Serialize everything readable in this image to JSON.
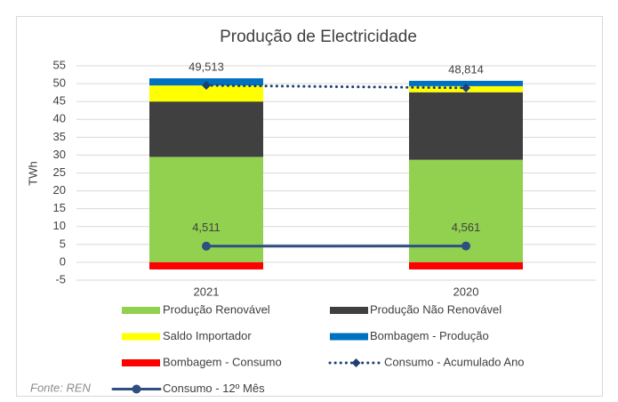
{
  "chart_data": {
    "type": "bar",
    "title": "Produção de Electricidade",
    "y_label": "TWh",
    "source": "Fonte: REN",
    "categories": [
      "2021",
      "2020"
    ],
    "ylim": [
      -5,
      55
    ],
    "yticks": [
      -5,
      0,
      5,
      10,
      15,
      20,
      25,
      30,
      35,
      40,
      45,
      50,
      55
    ],
    "grid": true,
    "stacked": true,
    "series": [
      {
        "name": "Produção Renovável",
        "color": "#92d050",
        "values": [
          29.5,
          28.7
        ]
      },
      {
        "name": "Produção Não Renovável",
        "color": "#404040",
        "values": [
          15.5,
          18.9
        ]
      },
      {
        "name": "Saldo Importador",
        "color": "#ffff00",
        "values": [
          4.5,
          1.7
        ]
      },
      {
        "name": "Bombagem - Produção",
        "color": "#0070c0",
        "values": [
          2,
          1.5
        ]
      },
      {
        "name": "Bombagem - Consumo",
        "color": "#ff0000",
        "values": [
          -2,
          -2
        ]
      },
      {
        "name": "Consumo - Acumulado Ano",
        "color": "#1f3f73",
        "type": "line",
        "style": "dotted",
        "marker": "diamond",
        "values": [
          49.513,
          48.814
        ],
        "value_labels": [
          "49,513",
          "48,814"
        ]
      },
      {
        "name": "Consumo - 12º Mês",
        "color": "#2e4f7f",
        "type": "line",
        "style": "solid",
        "marker": "circle",
        "values": [
          4.511,
          4.561
        ],
        "value_labels": [
          "4,511",
          "4,561"
        ]
      }
    ]
  }
}
